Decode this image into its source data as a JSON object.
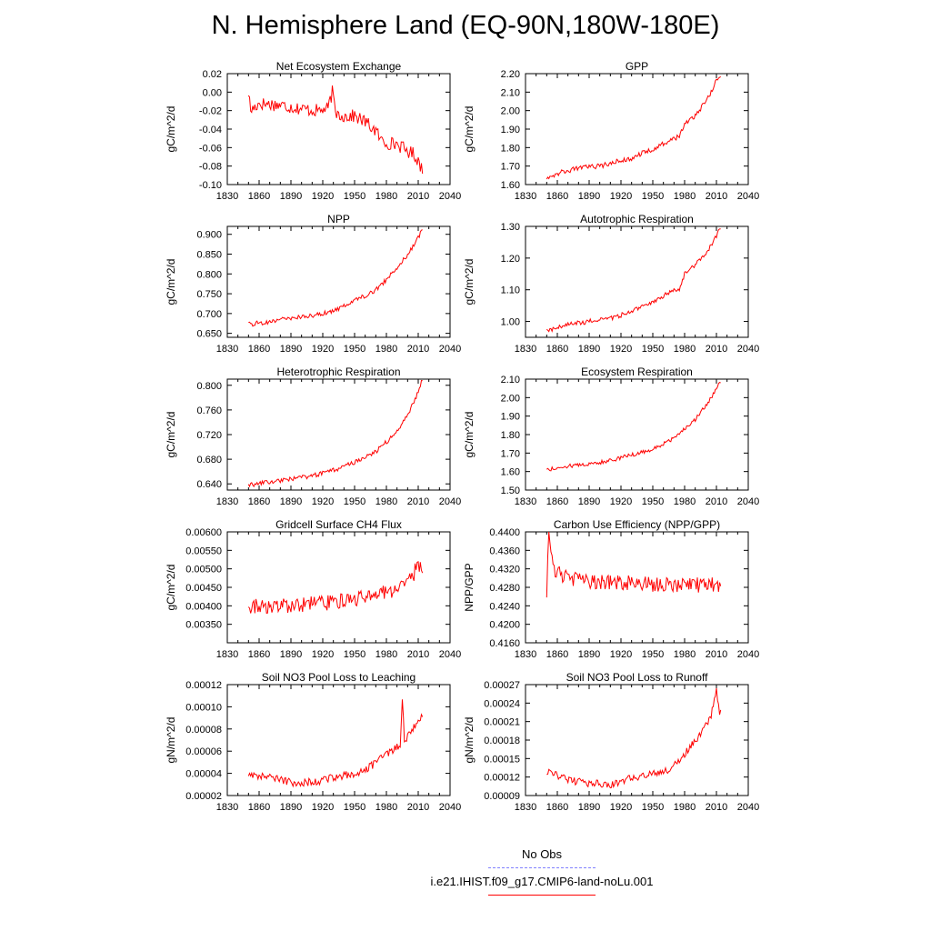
{
  "page": {
    "title": "N. Hemisphere Land (EQ-90N,180W-180E)"
  },
  "legend": {
    "entries": [
      {
        "label": "No Obs",
        "color": "#8080ff",
        "dash": true
      },
      {
        "label": "i.e21.IHIST.f09_g17.CMIP6-land-noLu.001",
        "color": "#ff0000",
        "dash": false
      }
    ]
  },
  "colors": {
    "series": "#ff0000"
  },
  "chart_data": [
    {
      "type": "line",
      "title": "Net Ecosystem Exchange",
      "ylabel": "gC/m^2/d",
      "xlim": [
        1830,
        2040
      ],
      "xticks": [
        1830,
        1860,
        1890,
        1920,
        1950,
        1980,
        2010,
        2040
      ],
      "ylim": [
        -0.1,
        0.02
      ],
      "yticks": [
        "-0.10",
        "-0.08",
        "-0.06",
        "-0.04",
        "-0.02",
        "0.00",
        "0.02"
      ],
      "series": [
        {
          "x_start": 1850,
          "x_end": 2014,
          "anchors": [
            [
              1850,
              0.0
            ],
            [
              1852,
              -0.02
            ],
            [
              1860,
              -0.012
            ],
            [
              1880,
              -0.014
            ],
            [
              1900,
              -0.018
            ],
            [
              1915,
              -0.02
            ],
            [
              1925,
              -0.018
            ],
            [
              1929,
              0.0
            ],
            [
              1932,
              -0.022
            ],
            [
              1940,
              -0.026
            ],
            [
              1950,
              -0.026
            ],
            [
              1960,
              -0.032
            ],
            [
              1970,
              -0.042
            ],
            [
              1975,
              -0.052
            ],
            [
              1980,
              -0.055
            ],
            [
              1990,
              -0.056
            ],
            [
              2000,
              -0.064
            ],
            [
              2005,
              -0.066
            ],
            [
              2010,
              -0.074
            ],
            [
              2013,
              -0.082
            ]
          ],
          "noise": 0.012
        }
      ]
    },
    {
      "type": "line",
      "title": "GPP",
      "ylabel": "gC/m^2/d",
      "xlim": [
        1830,
        2040
      ],
      "xticks": [
        1830,
        1860,
        1890,
        1920,
        1950,
        1980,
        2010,
        2040
      ],
      "ylim": [
        1.6,
        2.2
      ],
      "yticks": [
        "1.60",
        "1.70",
        "1.80",
        "1.90",
        "2.00",
        "2.10",
        "2.20"
      ],
      "series": [
        {
          "x_start": 1850,
          "x_end": 2014,
          "anchors": [
            [
              1850,
              1.64
            ],
            [
              1860,
              1.66
            ],
            [
              1880,
              1.69
            ],
            [
              1900,
              1.7
            ],
            [
              1920,
              1.73
            ],
            [
              1930,
              1.74
            ],
            [
              1940,
              1.77
            ],
            [
              1950,
              1.79
            ],
            [
              1960,
              1.82
            ],
            [
              1970,
              1.85
            ],
            [
              1975,
              1.86
            ],
            [
              1980,
              1.93
            ],
            [
              1990,
              1.97
            ],
            [
              2000,
              2.05
            ],
            [
              2005,
              2.1
            ],
            [
              2010,
              2.16
            ],
            [
              2013,
              2.19
            ]
          ],
          "noise": 0.022
        }
      ]
    },
    {
      "type": "line",
      "title": "NPP",
      "ylabel": "gC/m^2/d",
      "xlim": [
        1830,
        2040
      ],
      "xticks": [
        1830,
        1860,
        1890,
        1920,
        1950,
        1980,
        2010,
        2040
      ],
      "ylim": [
        0.64,
        0.92
      ],
      "yticks": [
        "0.650",
        "0.700",
        "0.750",
        "0.800",
        "0.850",
        "0.900"
      ],
      "series": [
        {
          "x_start": 1850,
          "x_end": 2014,
          "anchors": [
            [
              1850,
              0.672
            ],
            [
              1870,
              0.68
            ],
            [
              1890,
              0.688
            ],
            [
              1910,
              0.695
            ],
            [
              1920,
              0.7
            ],
            [
              1930,
              0.705
            ],
            [
              1940,
              0.72
            ],
            [
              1950,
              0.735
            ],
            [
              1960,
              0.745
            ],
            [
              1970,
              0.76
            ],
            [
              1980,
              0.785
            ],
            [
              1990,
              0.815
            ],
            [
              2000,
              0.85
            ],
            [
              2005,
              0.87
            ],
            [
              2010,
              0.89
            ],
            [
              2013,
              0.912
            ]
          ],
          "noise": 0.01
        }
      ]
    },
    {
      "type": "line",
      "title": "Autotrophic Respiration",
      "ylabel": "gC/m^2/d",
      "xlim": [
        1830,
        2040
      ],
      "xticks": [
        1830,
        1860,
        1890,
        1920,
        1950,
        1980,
        2010,
        2040
      ],
      "ylim": [
        0.95,
        1.3
      ],
      "yticks": [
        "1.00",
        "1.10",
        "1.20",
        "1.30"
      ],
      "series": [
        {
          "x_start": 1850,
          "x_end": 2014,
          "anchors": [
            [
              1850,
              0.97
            ],
            [
              1870,
              0.99
            ],
            [
              1890,
              1.0
            ],
            [
              1910,
              1.01
            ],
            [
              1920,
              1.02
            ],
            [
              1930,
              1.03
            ],
            [
              1940,
              1.05
            ],
            [
              1950,
              1.06
            ],
            [
              1960,
              1.08
            ],
            [
              1970,
              1.1
            ],
            [
              1975,
              1.1
            ],
            [
              1980,
              1.15
            ],
            [
              1990,
              1.18
            ],
            [
              2000,
              1.21
            ],
            [
              2005,
              1.24
            ],
            [
              2010,
              1.27
            ],
            [
              2013,
              1.29
            ]
          ],
          "noise": 0.012
        }
      ]
    },
    {
      "type": "line",
      "title": "Heterotrophic Respiration",
      "ylabel": "gC/m^2/d",
      "xlim": [
        1830,
        2040
      ],
      "xticks": [
        1830,
        1860,
        1890,
        1920,
        1950,
        1980,
        2010,
        2040
      ],
      "ylim": [
        0.63,
        0.81
      ],
      "yticks": [
        "0.640",
        "0.680",
        "0.720",
        "0.760",
        "0.800"
      ],
      "series": [
        {
          "x_start": 1850,
          "x_end": 2014,
          "anchors": [
            [
              1850,
              0.638
            ],
            [
              1870,
              0.643
            ],
            [
              1890,
              0.648
            ],
            [
              1910,
              0.653
            ],
            [
              1930,
              0.662
            ],
            [
              1950,
              0.675
            ],
            [
              1960,
              0.684
            ],
            [
              1970,
              0.692
            ],
            [
              1980,
              0.708
            ],
            [
              1990,
              0.725
            ],
            [
              2000,
              0.752
            ],
            [
              2005,
              0.77
            ],
            [
              2010,
              0.79
            ],
            [
              2013,
              0.805
            ]
          ],
          "noise": 0.006
        }
      ]
    },
    {
      "type": "line",
      "title": "Ecosystem Respiration",
      "ylabel": "gC/m^2/d",
      "xlim": [
        1830,
        2040
      ],
      "xticks": [
        1830,
        1860,
        1890,
        1920,
        1950,
        1980,
        2010,
        2040
      ],
      "ylim": [
        1.5,
        2.1
      ],
      "yticks": [
        "1.50",
        "1.60",
        "1.70",
        "1.80",
        "1.90",
        "2.00",
        "2.10"
      ],
      "series": [
        {
          "x_start": 1850,
          "x_end": 2014,
          "anchors": [
            [
              1850,
              1.61
            ],
            [
              1870,
              1.63
            ],
            [
              1890,
              1.64
            ],
            [
              1910,
              1.66
            ],
            [
              1930,
              1.69
            ],
            [
              1950,
              1.72
            ],
            [
              1960,
              1.75
            ],
            [
              1970,
              1.78
            ],
            [
              1980,
              1.83
            ],
            [
              1990,
              1.88
            ],
            [
              2000,
              1.96
            ],
            [
              2005,
              2.0
            ],
            [
              2010,
              2.05
            ],
            [
              2013,
              2.09
            ]
          ],
          "noise": 0.018
        }
      ]
    },
    {
      "type": "line",
      "title": "Gridcell Surface CH4 Flux",
      "ylabel": "gC/m^2/d",
      "xlim": [
        1830,
        2040
      ],
      "xticks": [
        1830,
        1860,
        1890,
        1920,
        1950,
        1980,
        2010,
        2040
      ],
      "ylim": [
        0.003,
        0.006
      ],
      "yticks": [
        "0.00350",
        "0.00400",
        "0.00450",
        "0.00500",
        "0.00550",
        "0.00600"
      ],
      "series": [
        {
          "x_start": 1850,
          "x_end": 2014,
          "anchors": [
            [
              1850,
              0.004
            ],
            [
              1870,
              0.00395
            ],
            [
              1890,
              0.004
            ],
            [
              1910,
              0.00405
            ],
            [
              1930,
              0.0041
            ],
            [
              1950,
              0.0042
            ],
            [
              1970,
              0.0043
            ],
            [
              1985,
              0.0044
            ],
            [
              1995,
              0.00455
            ],
            [
              2005,
              0.0048
            ],
            [
              2010,
              0.0052
            ],
            [
              2013,
              0.005
            ]
          ],
          "noise": 0.00035
        }
      ]
    },
    {
      "type": "line",
      "title": "Carbon Use Efficiency (NPP/GPP)",
      "ylabel": "NPP/GPP",
      "xlim": [
        1830,
        2040
      ],
      "xticks": [
        1830,
        1860,
        1890,
        1920,
        1950,
        1980,
        2010,
        2040
      ],
      "ylim": [
        0.416,
        0.44
      ],
      "yticks": [
        "0.4160",
        "0.4200",
        "0.4240",
        "0.4280",
        "0.4320",
        "0.4360",
        "0.4400"
      ],
      "series": [
        {
          "x_start": 1850,
          "x_end": 2014,
          "anchors": [
            [
              1850,
              0.4265
            ],
            [
              1852,
              0.44
            ],
            [
              1856,
              0.432
            ],
            [
              1870,
              0.43
            ],
            [
              1900,
              0.429
            ],
            [
              1930,
              0.429
            ],
            [
              1960,
              0.4285
            ],
            [
              1990,
              0.4285
            ],
            [
              2013,
              0.4285
            ]
          ],
          "noise": 0.0028
        }
      ]
    },
    {
      "type": "line",
      "title": "Soil NO3 Pool Loss to Leaching",
      "ylabel": "gN/m^2/d",
      "xlim": [
        1830,
        2040
      ],
      "xticks": [
        1830,
        1860,
        1890,
        1920,
        1950,
        1980,
        2010,
        2040
      ],
      "ylim": [
        2e-05,
        0.00012
      ],
      "yticks": [
        "0.00002",
        "0.00004",
        "0.00006",
        "0.00008",
        "0.00010",
        "0.00012"
      ],
      "series": [
        {
          "x_start": 1850,
          "x_end": 2014,
          "anchors": [
            [
              1850,
              4e-05
            ],
            [
              1870,
              3.6e-05
            ],
            [
              1890,
              3.2e-05
            ],
            [
              1910,
              3.2e-05
            ],
            [
              1930,
              3.6e-05
            ],
            [
              1950,
              4e-05
            ],
            [
              1965,
              4.6e-05
            ],
            [
              1975,
              5.4e-05
            ],
            [
              1985,
              6e-05
            ],
            [
              1993,
              6.5e-05
            ],
            [
              1995,
              0.00011
            ],
            [
              1997,
              7e-05
            ],
            [
              2005,
              8e-05
            ],
            [
              2013,
              9e-05
            ]
          ],
          "noise": 6e-06
        }
      ]
    },
    {
      "type": "line",
      "title": "Soil NO3 Pool Loss to Runoff",
      "ylabel": "gN/m^2/d",
      "xlim": [
        1830,
        2040
      ],
      "xticks": [
        1830,
        1860,
        1890,
        1920,
        1950,
        1980,
        2010,
        2040
      ],
      "ylim": [
        9e-05,
        0.00027
      ],
      "yticks": [
        "0.00009",
        "0.00012",
        "0.00015",
        "0.00018",
        "0.00021",
        "0.00024",
        "0.00027"
      ],
      "series": [
        {
          "x_start": 1850,
          "x_end": 2014,
          "anchors": [
            [
              1850,
              0.00013
            ],
            [
              1870,
              0.000115
            ],
            [
              1890,
              0.00011
            ],
            [
              1910,
              0.000108
            ],
            [
              1930,
              0.000118
            ],
            [
              1950,
              0.000126
            ],
            [
              1965,
              0.000132
            ],
            [
              1975,
              0.000145
            ],
            [
              1985,
              0.00017
            ],
            [
              1995,
              0.00019
            ],
            [
              2005,
              0.00022
            ],
            [
              2010,
              0.00026
            ],
            [
              2013,
              0.000225
            ]
          ],
          "noise": 1e-05
        }
      ]
    }
  ]
}
